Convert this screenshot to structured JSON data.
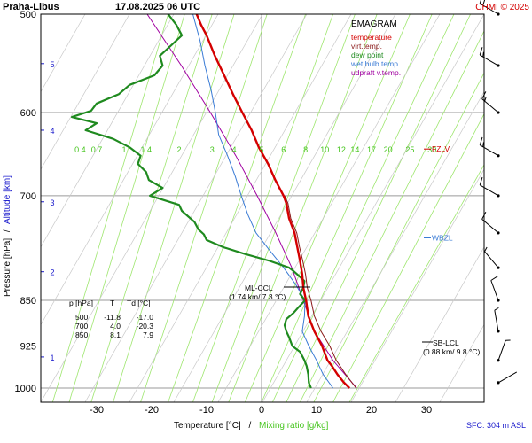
{
  "header": {
    "station": "Praha-Libus",
    "datetime": "17.08.2025 06 UTC",
    "credit": "CHMI © 2025"
  },
  "footer": {
    "sfc": "SFC: 304 m ASL",
    "xlabel_temp": "Temperature [°C]",
    "xlabel_sep": "/",
    "xlabel_mix": "Mixing ratio [g/kg]"
  },
  "colors": {
    "temperature": "#d40000",
    "virt_temp": "#8b1a1a",
    "dew_point": "#1f8a1f",
    "wet_bulb": "#3a7bd5",
    "updraft": "#a000a0",
    "mixing": "#9ee66e",
    "grid": "#9a9a9a",
    "altitude": "#1a1acc"
  },
  "legend": {
    "title": "EMAGRAM",
    "items": [
      {
        "label": "temperature",
        "color": "#d40000"
      },
      {
        "label": "virt.temp.",
        "color": "#8b1a1a"
      },
      {
        "label": "dew point",
        "color": "#1f8a1f"
      },
      {
        "label": "wet bulb temp.",
        "color": "#3a7bd5"
      },
      {
        "label": "udpraft v.temp.",
        "color": "#a000a0"
      }
    ]
  },
  "table": {
    "headers": [
      "p [hPa]",
      "T",
      "Td [°C]"
    ],
    "rows": [
      [
        "500",
        "-11.8",
        "-17.0"
      ],
      [
        "700",
        "4.0",
        "-20.3"
      ],
      [
        "850",
        "8.1",
        "7.9"
      ]
    ]
  },
  "annotations": {
    "ml_ccl_1": "ML-CCL",
    "ml_ccl_2": "(1.74 km/ 7.3 °C)",
    "sb_lcl_1": "SB-LCL",
    "sb_lcl_2": "(0.88 km/ 9.8 °C)",
    "fzlv": "FZLV",
    "wbzl": "WBZL"
  },
  "chart_data": {
    "type": "line",
    "ylabel": "Pressure [hPa]",
    "ylabel_sep": "/",
    "ylabel2": "Altitude [km]",
    "xlim": [
      -40,
      35
    ],
    "ylim": [
      1020,
      500
    ],
    "pressure_ticks": [
      500,
      600,
      700,
      850,
      925,
      1000
    ],
    "temp_ticks": [
      -30,
      -20,
      -10,
      0,
      10,
      20,
      30
    ],
    "altitude_ticks": [
      {
        "label": "1",
        "p": 944
      },
      {
        "label": "2",
        "p": 806
      },
      {
        "label": "3",
        "p": 708
      },
      {
        "label": "4",
        "p": 620
      },
      {
        "label": "5",
        "p": 548
      }
    ],
    "mixing_ratio_labels": [
      "0.4",
      "0.7",
      "1",
      "1.4",
      "2",
      "3",
      "4",
      "5",
      "6",
      "8",
      "10",
      "12",
      "14",
      "17",
      "20",
      "25",
      "30"
    ],
    "mixing_ratio_label_p": 625,
    "mixing_ratio_label_t": [
      -33,
      -30,
      -25,
      -21,
      -15,
      -9,
      -5,
      0,
      4,
      8,
      11.5,
      14.5,
      17,
      20,
      23,
      27,
      31
    ],
    "mixing_ratio_bottom_t": [
      -38,
      -35,
      -31,
      -27,
      -22,
      -17,
      -12.5,
      -9,
      -6,
      -3,
      0,
      2,
      4.5,
      7,
      9.5,
      13,
      16
    ],
    "mixing_ratio_top_t": [
      -17,
      -14,
      -9,
      -5,
      1,
      8,
      13,
      17,
      21,
      27,
      31,
      35,
      38,
      42,
      46,
      50,
      56
    ],
    "fzlv_p": 642,
    "wbzl_p": 757,
    "series": [
      {
        "name": "temperature",
        "key": "temperature",
        "p": [
          1000,
          990,
          975,
          960,
          950,
          925,
          900,
          875,
          850,
          830,
          810,
          790,
          770,
          750,
          730,
          710,
          700,
          680,
          660,
          640,
          620,
          600,
          580,
          560,
          540,
          520,
          510,
          500
        ],
        "t": [
          16.0,
          15.0,
          13.8,
          12.8,
          12.0,
          11.0,
          9.6,
          8.5,
          8.1,
          7.6,
          7.4,
          7.0,
          6.5,
          6.0,
          5.0,
          4.5,
          4.0,
          2.5,
          1.2,
          -0.5,
          -1.8,
          -3.5,
          -5.2,
          -6.8,
          -8.5,
          -10.0,
          -11.0,
          -11.8
        ]
      },
      {
        "name": "virt.temp.",
        "key": "virt_temp",
        "p": [
          1000,
          975,
          950,
          925,
          900,
          875,
          850,
          830,
          810,
          790,
          770,
          750,
          730,
          710,
          700
        ],
        "t": [
          17.2,
          15.3,
          13.6,
          12.4,
          10.8,
          9.6,
          9.0,
          8.3,
          8.0,
          7.5,
          6.9,
          6.4,
          5.3,
          4.8,
          4.2
        ]
      },
      {
        "name": "dew point",
        "key": "dew_point",
        "p": [
          1000,
          990,
          975,
          960,
          950,
          935,
          925,
          910,
          900,
          890,
          880,
          870,
          860,
          850,
          840,
          830,
          820,
          810,
          805,
          800,
          790,
          780,
          770,
          760,
          752,
          745,
          735,
          720,
          712,
          700,
          690,
          680,
          670,
          660,
          650,
          640,
          630,
          620,
          612,
          605,
          598,
          590,
          580,
          570,
          560,
          550,
          540,
          530,
          520,
          510,
          500
        ],
        "t": [
          9.0,
          8.6,
          8.5,
          8.2,
          7.8,
          7.0,
          5.6,
          5.0,
          4.5,
          4.2,
          4.5,
          5.8,
          6.8,
          7.9,
          7.0,
          7.6,
          7.8,
          6.5,
          5.8,
          5.0,
          1.5,
          -3.0,
          -7.0,
          -10.0,
          -10.5,
          -11.5,
          -12.2,
          -14.5,
          -15.0,
          -20.3,
          -18.0,
          -20.5,
          -21.0,
          -22.5,
          -22.0,
          -24.0,
          -27.0,
          -32.0,
          -30.0,
          -34.5,
          -31.0,
          -30.0,
          -26.0,
          -24.0,
          -19.5,
          -18.0,
          -18.5,
          -16.5,
          -14.5,
          -15.5,
          -17.0
        ]
      },
      {
        "name": "wet bulb temp.",
        "key": "wet_bulb",
        "p": [
          1000,
          975,
          950,
          925,
          900,
          875,
          850,
          825,
          800,
          775,
          750,
          725,
          700,
          675,
          650,
          625,
          600,
          575,
          550,
          525,
          500
        ],
        "t": [
          13.0,
          11.2,
          10.0,
          8.6,
          7.4,
          7.8,
          7.9,
          6.2,
          4.0,
          1.5,
          -1.0,
          -2.5,
          -3.7,
          -4.8,
          -6.2,
          -7.8,
          -8.4,
          -9.2,
          -10.3,
          -11.2,
          -12.5
        ]
      },
      {
        "name": "udpraft v.temp.",
        "key": "updraft",
        "p": [
          1000,
          950,
          900,
          850,
          800,
          750,
          700,
          650,
          600,
          550,
          500
        ],
        "t": [
          17.3,
          13.0,
          9.6,
          7.6,
          5.5,
          2.6,
          -0.8,
          -4.7,
          -9.3,
          -14.6,
          -20.8
        ]
      }
    ],
    "wind": [
      {
        "p": 500,
        "dir": 300,
        "kt": 20
      },
      {
        "p": 550,
        "dir": 300,
        "kt": 15
      },
      {
        "p": 600,
        "dir": 310,
        "kt": 15
      },
      {
        "p": 650,
        "dir": 300,
        "kt": 15
      },
      {
        "p": 700,
        "dir": 300,
        "kt": 10
      },
      {
        "p": 750,
        "dir": 310,
        "kt": 10
      },
      {
        "p": 800,
        "dir": 320,
        "kt": 5
      },
      {
        "p": 850,
        "dir": 340,
        "kt": 10
      },
      {
        "p": 900,
        "dir": 350,
        "kt": 5
      },
      {
        "p": 950,
        "dir": 20,
        "kt": 5
      },
      {
        "p": 990,
        "dir": 60,
        "kt": 2
      }
    ]
  }
}
